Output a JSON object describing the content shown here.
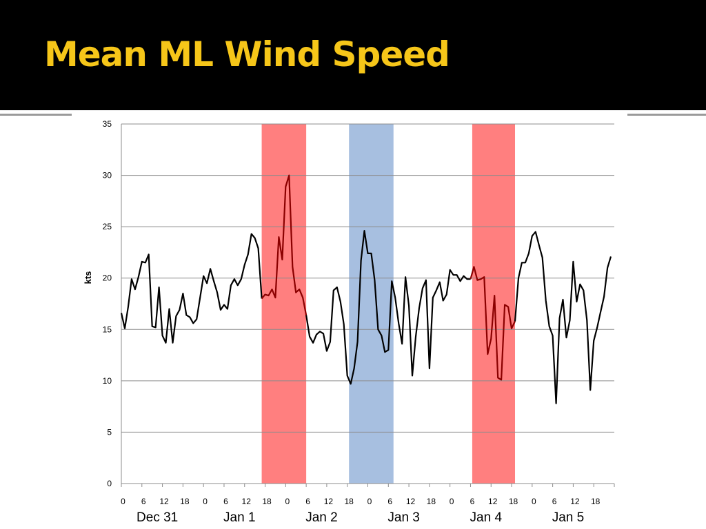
{
  "slide": {
    "title": "Mean ML Wind Speed"
  },
  "colors": {
    "header_bg": "#000000",
    "title": "#f6c619",
    "warm_shade": "#ff7f7f",
    "cool_shade": "#a7bfe0",
    "line": "#000000",
    "line_in_warm": "#8b0000",
    "grid": "#8c8c8c"
  },
  "chart_data": {
    "type": "line",
    "title": "",
    "ylabel": "kts",
    "xlabel": "",
    "ylim": [
      0,
      35
    ],
    "yticks": [
      0,
      5,
      10,
      15,
      20,
      25,
      30,
      35
    ],
    "grid": true,
    "x_hours_per_step": 1,
    "x_range_hours": [
      0,
      144
    ],
    "x_tick_every_hours": 6,
    "x_tick_labels": [
      "0",
      "6",
      "12",
      "18",
      "0",
      "6",
      "12",
      "18",
      "0",
      "6",
      "12",
      "18",
      "0",
      "6",
      "12",
      "18",
      "0",
      "6",
      "12",
      "18",
      "0",
      "6",
      "12",
      "18"
    ],
    "day_labels": [
      "Dec 31",
      "Jan 1",
      "Jan 2",
      "Jan 3",
      "Jan 4",
      "Jan 5"
    ],
    "shaded_periods": [
      {
        "start_hour": 41,
        "end_hour": 54,
        "color": "#ff7f7f"
      },
      {
        "start_hour": 66.5,
        "end_hour": 79.5,
        "color": "#a7bfe0"
      },
      {
        "start_hour": 102.5,
        "end_hour": 115,
        "color": "#ff7f7f"
      }
    ],
    "series": [
      {
        "points": [
          [
            0,
            16.6
          ],
          [
            1,
            15.1
          ],
          [
            2,
            17.2
          ],
          [
            3,
            19.9
          ],
          [
            4,
            18.9
          ],
          [
            5,
            20.1
          ],
          [
            6,
            21.6
          ],
          [
            7,
            21.5
          ],
          [
            8,
            22.3
          ],
          [
            9,
            15.3
          ],
          [
            10,
            15.2
          ],
          [
            11,
            19.1
          ],
          [
            12,
            14.4
          ],
          [
            13,
            13.7
          ],
          [
            14,
            17.0
          ],
          [
            15,
            13.7
          ],
          [
            16,
            16.3
          ],
          [
            17,
            16.9
          ],
          [
            18,
            18.5
          ],
          [
            19,
            16.4
          ],
          [
            20,
            16.2
          ],
          [
            21,
            15.6
          ],
          [
            22,
            16.0
          ],
          [
            23,
            18.1
          ],
          [
            24,
            20.2
          ],
          [
            25,
            19.5
          ],
          [
            26,
            20.9
          ],
          [
            27,
            19.7
          ],
          [
            28,
            18.6
          ],
          [
            29,
            16.9
          ],
          [
            30,
            17.4
          ],
          [
            31,
            17.0
          ],
          [
            32,
            19.3
          ],
          [
            33,
            19.9
          ],
          [
            34,
            19.3
          ],
          [
            35,
            19.9
          ],
          [
            36,
            21.3
          ],
          [
            37,
            22.3
          ],
          [
            38,
            24.3
          ],
          [
            39,
            23.9
          ],
          [
            40,
            22.9
          ],
          [
            41,
            18.0
          ],
          [
            42,
            18.4
          ],
          [
            43,
            18.3
          ],
          [
            44,
            18.9
          ],
          [
            45,
            18.1
          ],
          [
            46,
            24.0
          ],
          [
            47,
            21.8
          ],
          [
            48,
            28.9
          ],
          [
            49,
            30.0
          ],
          [
            50,
            21.1
          ],
          [
            51,
            18.6
          ],
          [
            52,
            18.9
          ],
          [
            53,
            18.1
          ],
          [
            54,
            16.4
          ],
          [
            55,
            14.3
          ],
          [
            56,
            13.7
          ],
          [
            57,
            14.5
          ],
          [
            58,
            14.8
          ],
          [
            59,
            14.6
          ],
          [
            60,
            12.9
          ],
          [
            61,
            13.8
          ],
          [
            62,
            18.8
          ],
          [
            63,
            19.1
          ],
          [
            64,
            17.7
          ],
          [
            65,
            15.5
          ],
          [
            66,
            10.5
          ],
          [
            67,
            9.7
          ],
          [
            68,
            11.2
          ],
          [
            69,
            13.8
          ],
          [
            70,
            21.7
          ],
          [
            71,
            24.6
          ],
          [
            72,
            22.4
          ],
          [
            73,
            22.4
          ],
          [
            74,
            19.8
          ],
          [
            75,
            15.0
          ],
          [
            76,
            14.4
          ],
          [
            77,
            12.8
          ],
          [
            78,
            13.0
          ],
          [
            79,
            19.7
          ],
          [
            80,
            18.1
          ],
          [
            81,
            15.6
          ],
          [
            82,
            13.6
          ],
          [
            83,
            20.1
          ],
          [
            84,
            17.3
          ],
          [
            85,
            10.5
          ],
          [
            86,
            14.3
          ],
          [
            87,
            17.1
          ],
          [
            88,
            19.0
          ],
          [
            89,
            19.8
          ],
          [
            90,
            11.2
          ],
          [
            91,
            18.1
          ],
          [
            92,
            18.8
          ],
          [
            93,
            19.6
          ],
          [
            94,
            17.8
          ],
          [
            95,
            18.4
          ],
          [
            96,
            20.8
          ],
          [
            97,
            20.3
          ],
          [
            98,
            20.3
          ],
          [
            99,
            19.7
          ],
          [
            100,
            20.2
          ],
          [
            101,
            19.9
          ],
          [
            102,
            19.9
          ],
          [
            103,
            21.1
          ],
          [
            104,
            19.8
          ],
          [
            105,
            19.9
          ],
          [
            106,
            20.1
          ],
          [
            107,
            12.6
          ],
          [
            108,
            14.1
          ],
          [
            109,
            18.3
          ],
          [
            110,
            10.3
          ],
          [
            111,
            10.1
          ],
          [
            112,
            17.4
          ],
          [
            113,
            17.2
          ],
          [
            114,
            15.1
          ],
          [
            115,
            15.8
          ],
          [
            116,
            20.0
          ],
          [
            117,
            21.5
          ],
          [
            118,
            21.5
          ],
          [
            119,
            22.4
          ],
          [
            120,
            24.1
          ],
          [
            121,
            24.5
          ],
          [
            122,
            23.2
          ],
          [
            123,
            22.0
          ],
          [
            124,
            17.8
          ],
          [
            125,
            15.3
          ],
          [
            126,
            14.4
          ],
          [
            127,
            7.8
          ],
          [
            128,
            16.1
          ],
          [
            129,
            17.9
          ],
          [
            130,
            14.2
          ],
          [
            131,
            15.9
          ],
          [
            132,
            21.6
          ],
          [
            133,
            17.7
          ],
          [
            134,
            19.4
          ],
          [
            135,
            18.8
          ],
          [
            136,
            15.9
          ],
          [
            137,
            9.1
          ],
          [
            138,
            13.9
          ],
          [
            139,
            15.2
          ],
          [
            140,
            16.7
          ],
          [
            141,
            18.2
          ],
          [
            142,
            21.0
          ],
          [
            143,
            22.1
          ]
        ]
      }
    ]
  }
}
